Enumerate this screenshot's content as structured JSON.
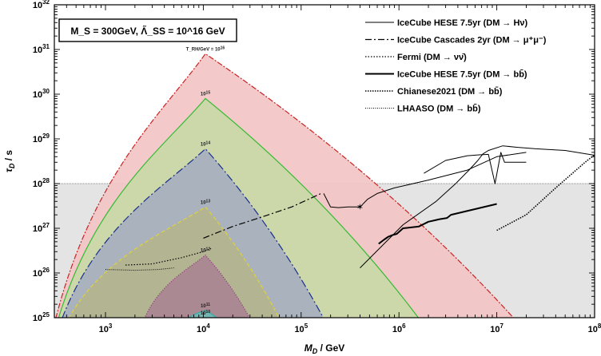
{
  "chart_data": {
    "type": "area",
    "xlabel": "M_D / GeV",
    "ylabel": "τ_D / s",
    "xscale": "log",
    "yscale": "log",
    "xlim": [
      300,
      100000000
    ],
    "ylim": [
      1e+25,
      1e+32
    ],
    "x_ticks": [
      {
        "value": 1000,
        "label": "10^3"
      },
      {
        "value": 10000,
        "label": "10^4"
      },
      {
        "value": 100000,
        "label": "10^5"
      },
      {
        "value": 1000000,
        "label": "10^6"
      },
      {
        "value": 10000000,
        "label": "10^7"
      },
      {
        "value": 100000000,
        "label": "10^8"
      }
    ],
    "y_ticks": [
      {
        "value": 1e+25,
        "label": "10^25"
      },
      {
        "value": 1e+26,
        "label": "10^26"
      },
      {
        "value": 1e+27,
        "label": "10^27"
      },
      {
        "value": 1e+28,
        "label": "10^28"
      },
      {
        "value": 1e+29,
        "label": "10^29"
      },
      {
        "value": 1e+30,
        "label": "10^30"
      },
      {
        "value": 1e+31,
        "label": "10^31"
      },
      {
        "value": 1e+32,
        "label": "10^32"
      }
    ],
    "parameter_box": "M_S = 300GeV, Λ̃_SS = 10^16 GeV",
    "excluded_band": {
      "y_max": 1e+28,
      "color": "#e4e4e4"
    },
    "reheating_regions": [
      {
        "label_prefix": "T_RH/GeV = ",
        "label": "10^16",
        "peak_x": 10500,
        "peak_y": 8e+30,
        "left_x": 310,
        "right_x": 15000000.0,
        "fill": "#f2c4c4",
        "edge": "#cc2222",
        "dash": "7,2,2,2"
      },
      {
        "label": "10^15",
        "peak_x": 10500,
        "peak_y": 8e+29,
        "left_x": 330,
        "right_x": 1600000.0,
        "fill": "#c9d9a6",
        "edge": "#33bb33",
        "dash": "none"
      },
      {
        "label": "10^14",
        "peak_x": 10500,
        "peak_y": 6e+28,
        "left_x": 360,
        "right_x": 170000.0,
        "fill": "#a6afbf",
        "edge": "#1a2f8c",
        "dash": "10,3,2,3"
      },
      {
        "label": "10^13",
        "peak_x": 10500,
        "peak_y": 3e+27,
        "left_x": 420,
        "right_x": 60000.0,
        "fill": "#b3b48e",
        "edge": "#e0d23a",
        "dash": "5,3"
      },
      {
        "label": "10^12",
        "peak_x": 10500,
        "peak_y": 2.5e+26,
        "left_x": 2500,
        "right_x": 30000.0,
        "fill": "#a98592",
        "edge": "#8c2a7a",
        "dash": "1,2"
      },
      {
        "label": "10^11",
        "peak_x": 10500,
        "peak_y": 1.45e+25,
        "left_x": 7000,
        "right_x": 14000,
        "fill": "#6fbbb5",
        "edge": "#3aa8a8",
        "dash": "none"
      },
      {
        "label": "10^10",
        "peak_x": 10500,
        "peak_y": 1e+25,
        "left_x": 9000,
        "right_x": 12000,
        "fill": "#6fbbb5",
        "edge": "#3aa8a8",
        "dash": "none"
      }
    ],
    "series": [
      {
        "name": "IceCube HESE 7.5yr (DM → Hν)",
        "style": "thin-solid",
        "x": [
          400000.0,
          1100000.0,
          2400000.0,
          3800000.0,
          5200000.0,
          6400000.0,
          7200000.0,
          8200000.0,
          11500000.0,
          16000000.0,
          25000000.0,
          50000000.0,
          100000000.0
        ],
        "y": [
          1.3e+26,
          1.2e+27,
          4e+27,
          1e+28,
          2e+28,
          3.3e+28,
          4.6e+28,
          5.5e+28,
          7e+28,
          6.5e+28,
          6e+28,
          5.5e+28,
          4.3e+28
        ]
      },
      {
        "name": "IceCube HESE 7.5yr (DM → Hν)",
        "style": "thin-solid",
        "x": [
          1800000.0,
          3000000.0,
          5000000.0,
          6600000.0,
          8200000.0,
          9600000.0,
          11000000.0,
          12000000.0,
          20000000.0
        ],
        "y": [
          1.7e+28,
          3.3e+28,
          4.2e+28,
          4.4e+28,
          4.5e+28,
          1e+28,
          5e+28,
          3e+28,
          3e+28
        ]
      },
      {
        "name": "IceCube Cascades 2yr (DM → μ⁺μ⁻)",
        "style": "dashdot",
        "x": [
          10000,
          20000,
          40000,
          80000,
          160000
        ],
        "y": [
          6e+26,
          1.1e+27,
          1.8e+27,
          3e+27,
          6e+27
        ]
      },
      {
        "name": "Fermi (DM → νν̄)",
        "style": "dotted",
        "x": [
          1600,
          3000,
          6000,
          10000,
          12000
        ],
        "y": [
          1.5e+26,
          1.6e+26,
          2.2e+26,
          3e+26,
          3.5e+26
        ]
      },
      {
        "name": "IceCube HESE 7.5yr (DM → bb̄)",
        "style": "thick-solid",
        "x": [
          620000,
          700000,
          780000,
          850000,
          950000,
          1100000.0,
          1600000.0,
          2000000.0,
          2300000.0,
          2600000.0,
          3100000.0,
          3400000.0,
          10000000.0
        ],
        "y": [
          4.5e+26,
          5.5e+26,
          6.5e+26,
          7e+26,
          7.5e+26,
          1e+27,
          1.1e+27,
          1.4e+27,
          1.5e+27,
          1.6e+27,
          1.7e+27,
          2e+27,
          3.5e+27
        ]
      },
      {
        "name": "Chianese2021 (DM → bb̄)",
        "style": "dense-dotted",
        "x": [
          10000000.0,
          20000000.0,
          40000000.0,
          80000000.0,
          120000000.0
        ],
        "y": [
          9e+26,
          2e+27,
          8e+27,
          3e+28,
          6e+28
        ]
      },
      {
        "name": "LHAASO (DM → bb̄)",
        "style": "fine-dotted",
        "x": [
          1000,
          2000,
          3500,
          5000
        ],
        "y": [
          1.2e+26,
          1.15e+26,
          1.2e+26,
          1.3e+26
        ]
      },
      {
        "name": "IceCube HESE 7.5yr (DM → Hν)",
        "style": "thin-solid",
        "x": [
          170000,
          200000,
          240000,
          300000,
          400000
        ],
        "y": [
          6e+27,
          3e+27,
          2.9e+27,
          3e+27,
          3e+27
        ]
      },
      {
        "name": "IceCube HESE 7.5yr (DM → Hν)",
        "style": "thin-solid",
        "x": [
          400000,
          480000,
          600000,
          900000,
          2000000.0,
          5000000.0,
          10000000.0,
          20000000.0
        ],
        "y": [
          3e+27,
          4.5e+27,
          6e+27,
          8e+27,
          1.2e+28,
          2e+28,
          4e+28,
          5e+28
        ]
      }
    ],
    "star_marker": {
      "x": 400000,
      "y": 3e+27
    },
    "legend": {
      "placement": "top-right",
      "entries": [
        {
          "label": "IceCube HESE 7.5yr (DM → Hν)",
          "style": "thin-solid"
        },
        {
          "label": "IceCube Cascades 2yr (DM → μ⁺μ⁻)",
          "style": "dashdot"
        },
        {
          "label": "Fermi (DM → νν̄)",
          "style": "dotted"
        },
        {
          "label": "IceCube HESE 7.5yr (DM → bb̄)",
          "style": "thick-solid"
        },
        {
          "label": "Chianese2021 (DM → bb̄)",
          "style": "dense-dotted"
        },
        {
          "label": "LHAASO (DM → bb̄)",
          "style": "fine-dotted"
        }
      ]
    }
  }
}
